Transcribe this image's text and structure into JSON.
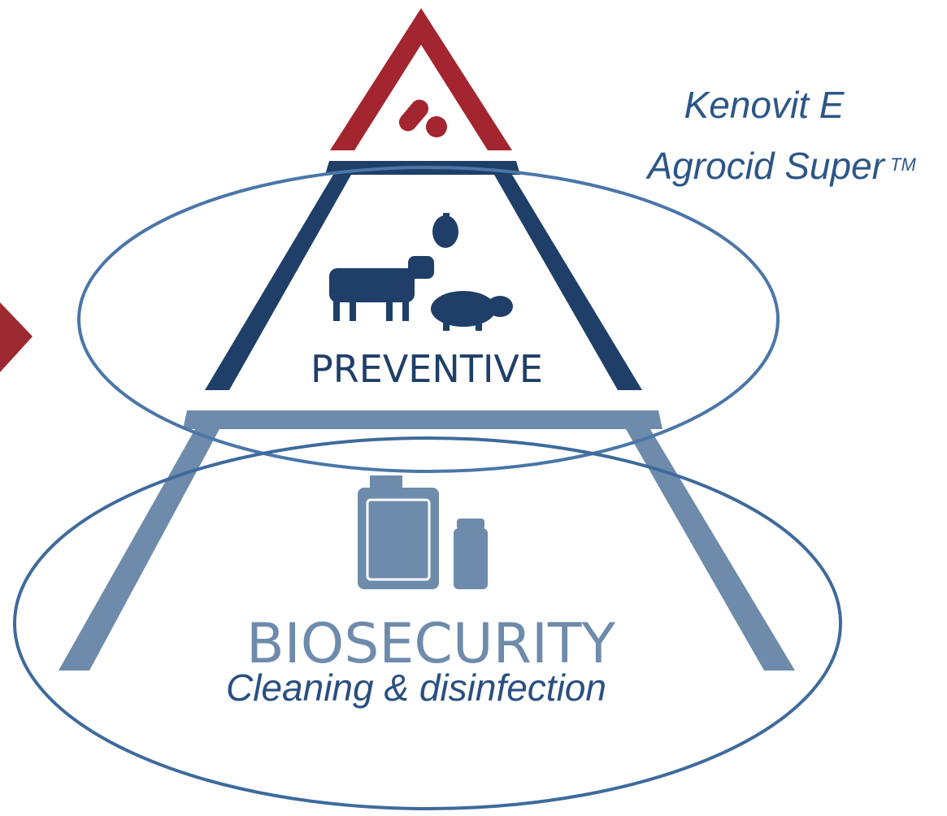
{
  "annotations": {
    "top_label": {
      "line1": "Kenovit E",
      "line2": "Agrocid Super",
      "trademark": "TM"
    }
  },
  "pyramid": {
    "middle_label": "PREVENTIVE",
    "base_label": "BIOSECURITY"
  },
  "bottom_label": "Cleaning & disinfection"
}
